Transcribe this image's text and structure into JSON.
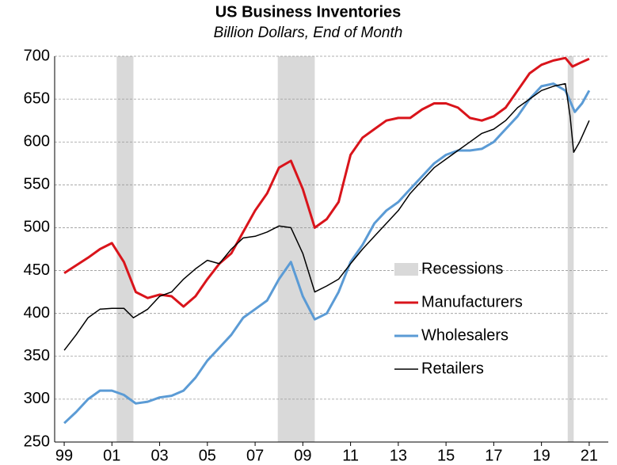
{
  "chart_data": {
    "type": "line",
    "title": "US Business Inventories",
    "subtitle": "Billion Dollars, End of Month",
    "xlim": [
      1998.6,
      2021.8
    ],
    "xticks": [
      {
        "value": 1999,
        "label": "99"
      },
      {
        "value": 2001,
        "label": "01"
      },
      {
        "value": 2003,
        "label": "03"
      },
      {
        "value": 2005,
        "label": "05"
      },
      {
        "value": 2007,
        "label": "07"
      },
      {
        "value": 2009,
        "label": "09"
      },
      {
        "value": 2011,
        "label": "11"
      },
      {
        "value": 2013,
        "label": "13"
      },
      {
        "value": 2015,
        "label": "15"
      },
      {
        "value": 2017,
        "label": "17"
      },
      {
        "value": 2019,
        "label": "19"
      },
      {
        "value": 2021,
        "label": "21"
      }
    ],
    "ylim": [
      250,
      700
    ],
    "yticks": [
      250,
      300,
      350,
      400,
      450,
      500,
      550,
      600,
      650,
      700
    ],
    "grid": true,
    "legend": "right",
    "recessions": {
      "name": "Recessions",
      "color": "#d9d9d9",
      "spans": [
        [
          2001.2,
          2001.9
        ],
        [
          2007.95,
          2009.5
        ],
        [
          2020.1,
          2020.35
        ]
      ]
    },
    "series": [
      {
        "name": "Manufacturers",
        "color": "#d9141b",
        "width": 3,
        "x": [
          1999,
          2000,
          2000.5,
          2001,
          2001.5,
          2002,
          2002.5,
          2003,
          2003.5,
          2004,
          2004.5,
          2005,
          2005.5,
          2006,
          2006.5,
          2007,
          2007.5,
          2008,
          2008.5,
          2009,
          2009.5,
          2010,
          2010.5,
          2011,
          2011.5,
          2012,
          2012.5,
          2013,
          2013.5,
          2014,
          2014.5,
          2015,
          2015.5,
          2016,
          2016.5,
          2017,
          2017.5,
          2018,
          2018.5,
          2019,
          2019.5,
          2020,
          2020.3,
          2020.6,
          2021
        ],
        "values": [
          447,
          465,
          475,
          482,
          460,
          425,
          418,
          422,
          420,
          408,
          420,
          440,
          458,
          470,
          495,
          520,
          540,
          570,
          578,
          545,
          500,
          510,
          530,
          585,
          605,
          615,
          625,
          628,
          628,
          638,
          645,
          645,
          640,
          628,
          625,
          630,
          640,
          660,
          680,
          690,
          695,
          698,
          688,
          692,
          697
        ]
      },
      {
        "name": "Wholesalers",
        "color": "#5b9bd5",
        "width": 3,
        "x": [
          1999,
          1999.5,
          2000,
          2000.5,
          2001,
          2001.5,
          2002,
          2002.5,
          2003,
          2003.5,
          2004,
          2004.5,
          2005,
          2005.5,
          2006,
          2006.5,
          2007,
          2007.5,
          2008,
          2008.5,
          2009,
          2009.5,
          2010,
          2010.5,
          2011,
          2011.5,
          2012,
          2012.5,
          2013,
          2013.5,
          2014,
          2014.5,
          2015,
          2015.5,
          2016,
          2016.5,
          2017,
          2017.5,
          2018,
          2018.5,
          2019,
          2019.5,
          2020,
          2020.4,
          2020.7,
          2021
        ],
        "values": [
          272,
          285,
          300,
          310,
          310,
          305,
          295,
          297,
          302,
          304,
          310,
          325,
          345,
          360,
          375,
          395,
          405,
          415,
          440,
          460,
          420,
          393,
          400,
          425,
          460,
          480,
          505,
          520,
          530,
          545,
          560,
          575,
          585,
          590,
          590,
          592,
          600,
          615,
          630,
          650,
          665,
          668,
          660,
          635,
          645,
          660
        ]
      },
      {
        "name": "Retailers",
        "color": "#000000",
        "width": 1.5,
        "x": [
          1999,
          1999.5,
          2000,
          2000.5,
          2001,
          2001.5,
          2001.9,
          2002.5,
          2003,
          2003.5,
          2004,
          2004.5,
          2005,
          2005.5,
          2006,
          2006.5,
          2007,
          2007.5,
          2008,
          2008.5,
          2009,
          2009.5,
          2010,
          2010.5,
          2011,
          2011.5,
          2012,
          2012.5,
          2013,
          2013.5,
          2014,
          2014.5,
          2015,
          2015.5,
          2016,
          2016.5,
          2017,
          2017.5,
          2018,
          2018.5,
          2019,
          2019.5,
          2020,
          2020.2,
          2020.35,
          2020.6,
          2021
        ],
        "values": [
          357,
          375,
          395,
          405,
          406,
          406,
          395,
          405,
          420,
          425,
          440,
          452,
          462,
          458,
          475,
          488,
          490,
          495,
          502,
          500,
          470,
          425,
          432,
          440,
          458,
          475,
          490,
          505,
          520,
          540,
          555,
          570,
          580,
          590,
          600,
          610,
          615,
          625,
          640,
          650,
          660,
          665,
          668,
          630,
          588,
          600,
          625
        ]
      }
    ]
  }
}
